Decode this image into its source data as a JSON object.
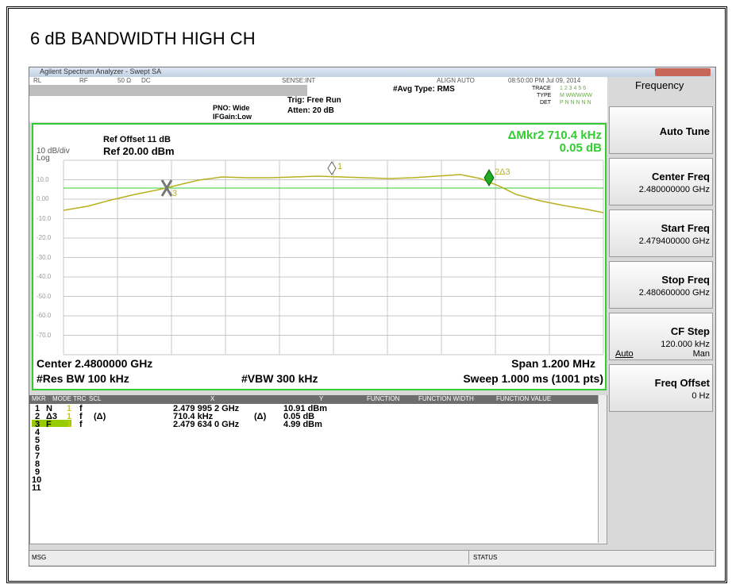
{
  "title": "6 dB BANDWIDTH HIGH CH",
  "window_title": "Agilent Spectrum Analyzer - Swept SA",
  "status_bar": [
    "RL",
    "RF",
    "50 Ω",
    "DC",
    "SENSE:INT",
    "ALIGN AUTO",
    "08:50:00 PM Jul 09, 2014"
  ],
  "settings": {
    "pno": "PNO: Wide",
    "ifgain": "IFGain:Low",
    "trig": "Trig: Free Run",
    "atten": "Atten: 20 dB",
    "avg": "#Avg Type: RMS",
    "trace_label": "TRACE",
    "trace": "1 2 3 4 5 6",
    "type_label": "TYPE",
    "type": "M WWWWW",
    "det_label": "DET",
    "det": "P N N N N N"
  },
  "display": {
    "ref_offset": "Ref Offset 11 dB",
    "ref_level": "Ref 20.00 dBm",
    "scale": "10 dB/div",
    "scale_type": "Log",
    "marker_readout": [
      "ΔMkr2 710.4 kHz",
      "0.05 dB"
    ],
    "y_labels": [
      "10.0",
      "0.00",
      "-10.0",
      "-20.0",
      "-30.0",
      "-40.0",
      "-50.0",
      "-60.0",
      "-70.0"
    ],
    "markers": [
      "1",
      "2Δ3",
      "3"
    ],
    "center": "Center 2.4800000 GHz",
    "res_bw": "#Res BW 100 kHz",
    "vbw": "#VBW 300 kHz",
    "span": "Span 1.200 MHz",
    "sweep": "Sweep  1.000 ms (1001 pts)"
  },
  "marker_table": {
    "headers": [
      "MKR",
      "MODE",
      "TRC",
      "SCL",
      "X",
      "Y",
      "FUNCTION",
      "FUNCTION WIDTH",
      "FUNCTION VALUE"
    ],
    "rows": [
      {
        "mkr": "1",
        "mode": "N",
        "trc": "1",
        "scl": "f",
        "x": "2.479 995 2 GHz",
        "y": "10.91 dBm"
      },
      {
        "mkr": "2",
        "mode": "Δ3",
        "trc": "1",
        "scl": "f",
        "x_mode": "(Δ)",
        "x": "710.4 kHz",
        "y_mode": "(Δ)",
        "y": "0.05 dB"
      },
      {
        "mkr": "3",
        "mode": "F",
        "trc": "1",
        "scl": "f",
        "x": "2.479 634 0 GHz",
        "y": "4.99 dBm"
      },
      {
        "mkr": "4"
      },
      {
        "mkr": "5"
      },
      {
        "mkr": "6"
      },
      {
        "mkr": "7"
      },
      {
        "mkr": "8"
      },
      {
        "mkr": "9"
      },
      {
        "mkr": "10"
      },
      {
        "mkr": "11"
      }
    ]
  },
  "softkeys": {
    "menu": "Frequency",
    "keys": [
      {
        "label": "Auto Tune"
      },
      {
        "label": "Center Freq",
        "value": "2.480000000 GHz"
      },
      {
        "label": "Start Freq",
        "value": "2.479400000 GHz"
      },
      {
        "label": "Stop Freq",
        "value": "2.480600000 GHz"
      },
      {
        "label": "CF Step",
        "value": "120.000 kHz",
        "options": [
          "Auto",
          "Man"
        ]
      },
      {
        "label": "Freq Offset",
        "value": "0 Hz"
      }
    ]
  },
  "footer": {
    "msg": "MSG",
    "status": "STATUS"
  }
}
